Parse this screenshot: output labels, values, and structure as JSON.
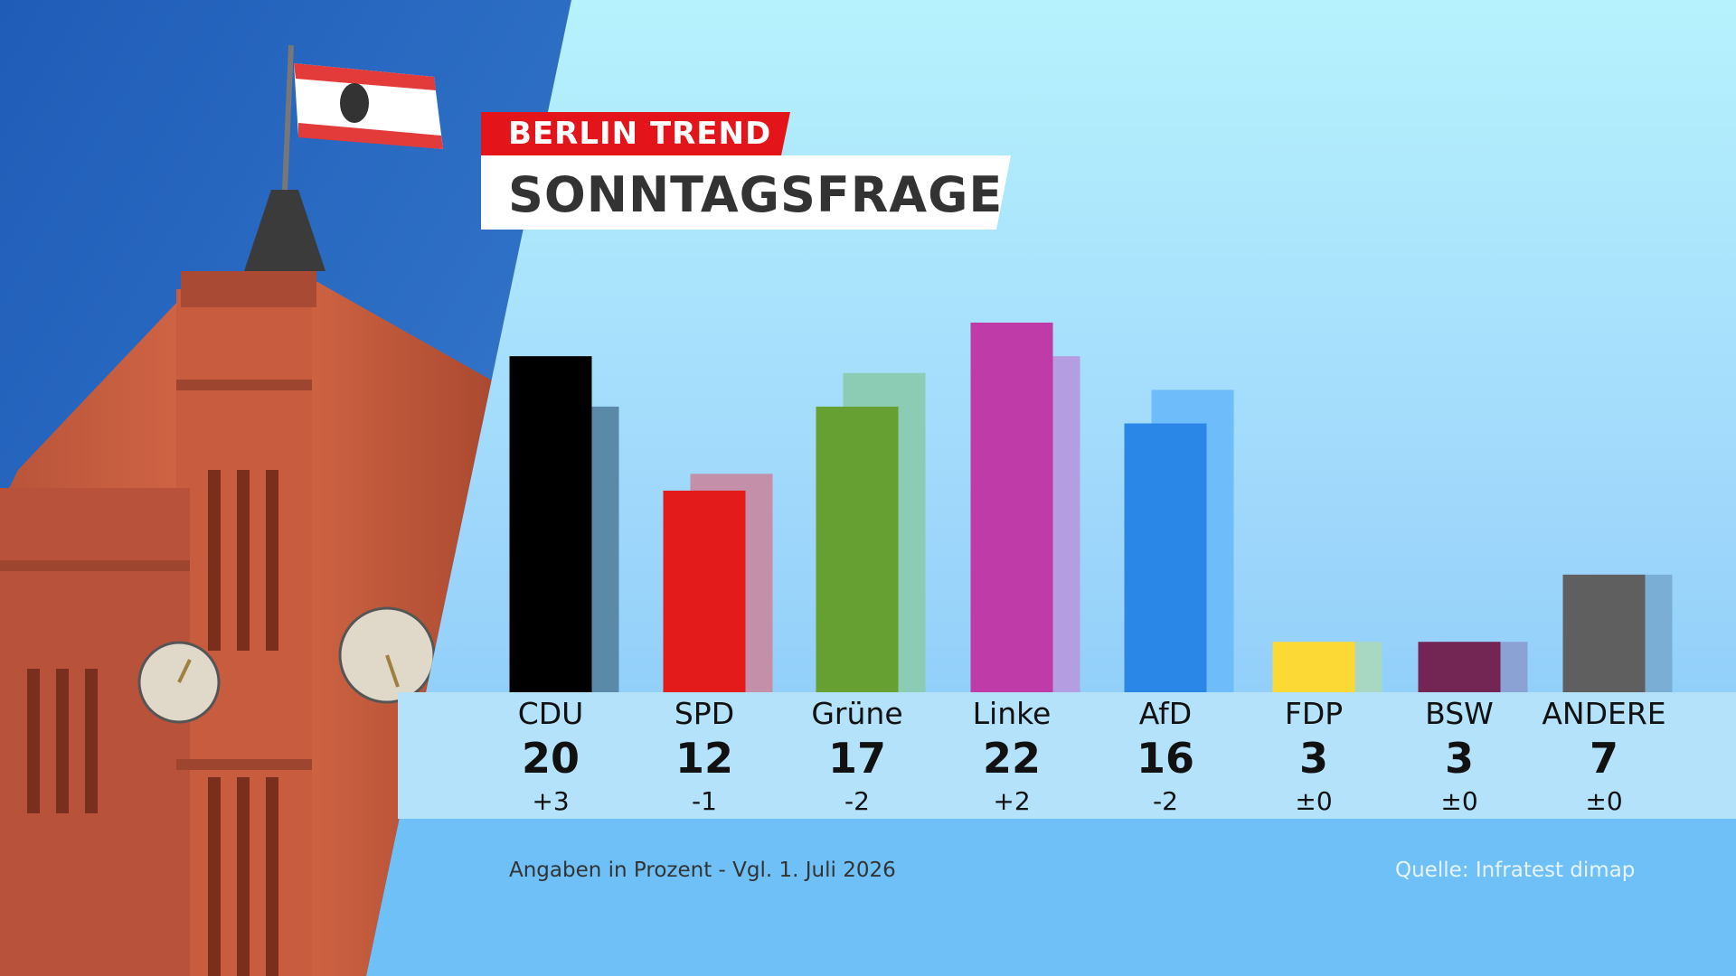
{
  "header": {
    "tag": "BERLIN TREND",
    "title": "SONNTAGSFRAGE"
  },
  "footer": {
    "note": "Angaben in Prozent - Vgl. 1. Juli 2026",
    "source": "Quelle: Infratest dimap"
  },
  "colors": {
    "accent_red": "#e3151b",
    "panel_bg": "#a6dcfb",
    "label_band": "#b4e2fb",
    "footer_bg": "#6fc0f7"
  },
  "chart_data": {
    "type": "bar",
    "categories": [
      "CDU",
      "SPD",
      "Grüne",
      "Linke",
      "AfD",
      "FDP",
      "BSW",
      "ANDERE"
    ],
    "series": [
      {
        "values": [
          20,
          12,
          17,
          22,
          16,
          3,
          3,
          7
        ]
      },
      {
        "values": [
          17,
          13,
          19,
          20,
          18,
          3,
          3,
          7
        ]
      }
    ],
    "changes": [
      "+3",
      "-1",
      "-2",
      "+2",
      "-2",
      "±0",
      "±0",
      "±0"
    ],
    "value_labels": [
      "20",
      "12",
      "17",
      "22",
      "16",
      "3",
      "3",
      "7"
    ],
    "colors": [
      "#000000",
      "#e31b1b",
      "#66a032",
      "#bf3ca8",
      "#2a87e8",
      "#fdd935",
      "#732553",
      "#5f5f5f"
    ],
    "previous_colors": [
      "#5b8aa8",
      "#c48fa8",
      "#8ccbb4",
      "#b49de0",
      "#6ebcf9",
      "#a8d8c2",
      "#8aa3d4",
      "#7aaed4"
    ],
    "ylim": [
      0,
      22
    ],
    "grid": false,
    "legend": "none"
  }
}
